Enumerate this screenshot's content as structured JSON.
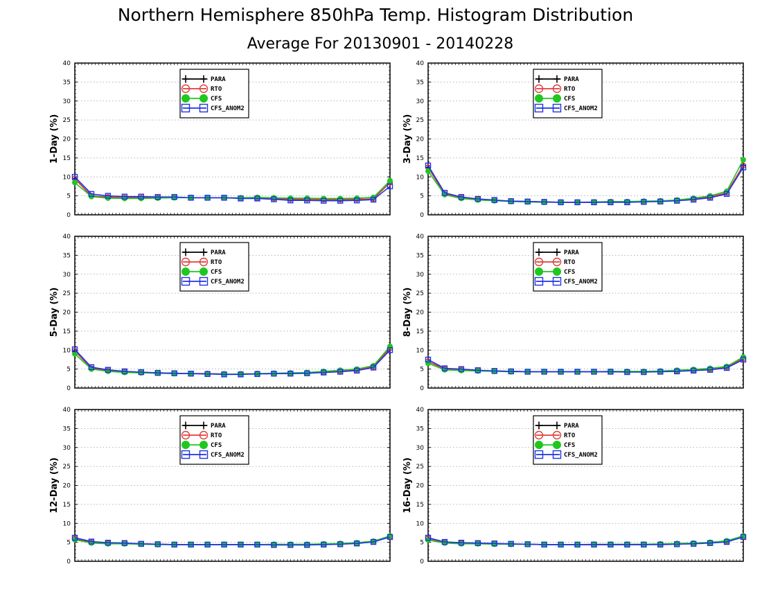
{
  "figure": {
    "title": "Northern Hemisphere 850hPa Temp. Histogram Distribution",
    "subtitle": "Average For 20130901 - 20140228"
  },
  "legend_entries": [
    "PARA",
    "RTO",
    "CFS",
    "CFS_ANOM2"
  ],
  "series_colors": {
    "PARA": "#000000",
    "RTO": "#e23b3b",
    "CFS": "#1ec81e",
    "CFS_ANOM2": "#1e32e6"
  },
  "y_ticks": [
    "0",
    "5",
    "10",
    "15",
    "20",
    "25",
    "30",
    "35",
    "40"
  ],
  "chart_data": [
    {
      "type": "line",
      "ylabel": "1-Day (%)",
      "ylim": [
        0,
        40
      ],
      "grid": true,
      "legend_position": "top-center",
      "x": [
        1,
        2,
        3,
        4,
        5,
        6,
        7,
        8,
        9,
        10,
        11,
        12,
        13,
        14,
        15,
        16,
        17,
        18,
        19,
        20
      ],
      "series": [
        {
          "name": "PARA",
          "values": [
            9.5,
            5.0,
            4.7,
            4.5,
            4.5,
            4.5,
            4.6,
            4.5,
            4.5,
            4.5,
            4.4,
            4.4,
            4.3,
            4.1,
            4.1,
            4.0,
            4.0,
            4.1,
            4.2,
            8.5
          ]
        },
        {
          "name": "RTO",
          "values": [
            9.5,
            5.0,
            4.7,
            4.5,
            4.5,
            4.5,
            4.6,
            4.5,
            4.5,
            4.5,
            4.4,
            4.4,
            4.3,
            4.1,
            4.1,
            4.0,
            4.0,
            4.1,
            4.2,
            8.5
          ]
        },
        {
          "name": "CFS",
          "values": [
            8.5,
            4.8,
            4.4,
            4.3,
            4.3,
            4.4,
            4.5,
            4.5,
            4.5,
            4.5,
            4.5,
            4.6,
            4.5,
            4.4,
            4.4,
            4.3,
            4.3,
            4.4,
            4.6,
            9.0
          ]
        },
        {
          "name": "CFS_ANOM2",
          "values": [
            10.0,
            5.5,
            5.0,
            4.8,
            4.8,
            4.7,
            4.7,
            4.5,
            4.5,
            4.5,
            4.3,
            4.3,
            4.1,
            3.8,
            3.8,
            3.7,
            3.7,
            3.8,
            4.0,
            7.5
          ]
        }
      ]
    },
    {
      "type": "line",
      "ylabel": "3-Day (%)",
      "ylim": [
        0,
        40
      ],
      "grid": true,
      "legend_position": "top-center",
      "x": [
        1,
        2,
        3,
        4,
        5,
        6,
        7,
        8,
        9,
        10,
        11,
        12,
        13,
        14,
        15,
        16,
        17,
        18,
        19,
        20
      ],
      "series": [
        {
          "name": "PARA",
          "values": [
            12.5,
            5.5,
            4.5,
            4.1,
            3.8,
            3.6,
            3.5,
            3.4,
            3.3,
            3.3,
            3.3,
            3.4,
            3.4,
            3.5,
            3.6,
            3.8,
            4.2,
            4.7,
            5.8,
            13.0
          ]
        },
        {
          "name": "RTO",
          "values": [
            12.5,
            5.5,
            4.5,
            4.1,
            3.8,
            3.6,
            3.5,
            3.4,
            3.3,
            3.3,
            3.3,
            3.4,
            3.4,
            3.5,
            3.6,
            3.8,
            4.2,
            4.7,
            5.8,
            13.0
          ]
        },
        {
          "name": "CFS",
          "values": [
            11.5,
            5.3,
            4.3,
            3.9,
            3.7,
            3.5,
            3.4,
            3.3,
            3.3,
            3.3,
            3.4,
            3.5,
            3.5,
            3.6,
            3.7,
            3.9,
            4.4,
            5.0,
            6.2,
            14.5
          ]
        },
        {
          "name": "CFS_ANOM2",
          "values": [
            13.0,
            5.8,
            4.7,
            4.2,
            3.9,
            3.6,
            3.5,
            3.4,
            3.3,
            3.3,
            3.3,
            3.3,
            3.3,
            3.4,
            3.5,
            3.7,
            4.0,
            4.5,
            5.5,
            12.5
          ]
        }
      ]
    },
    {
      "type": "line",
      "ylabel": "5-Day (%)",
      "ylim": [
        0,
        40
      ],
      "grid": true,
      "legend_position": "top-center",
      "x": [
        1,
        2,
        3,
        4,
        5,
        6,
        7,
        8,
        9,
        10,
        11,
        12,
        13,
        14,
        15,
        16,
        17,
        18,
        19,
        20
      ],
      "series": [
        {
          "name": "PARA",
          "values": [
            9.8,
            5.2,
            4.6,
            4.3,
            4.1,
            4.0,
            3.9,
            3.8,
            3.8,
            3.7,
            3.7,
            3.8,
            3.8,
            3.9,
            4.0,
            4.2,
            4.5,
            4.8,
            5.6,
            10.5
          ]
        },
        {
          "name": "RTO",
          "values": [
            9.8,
            5.2,
            4.6,
            4.3,
            4.1,
            4.0,
            3.9,
            3.8,
            3.8,
            3.7,
            3.7,
            3.8,
            3.8,
            3.9,
            4.0,
            4.2,
            4.5,
            4.8,
            5.6,
            10.5
          ]
        },
        {
          "name": "CFS",
          "values": [
            9.0,
            5.0,
            4.4,
            4.1,
            4.0,
            3.9,
            3.8,
            3.8,
            3.7,
            3.7,
            3.7,
            3.8,
            3.9,
            4.0,
            4.1,
            4.4,
            4.7,
            5.0,
            5.9,
            11.0
          ]
        },
        {
          "name": "CFS_ANOM2",
          "values": [
            10.2,
            5.5,
            4.8,
            4.4,
            4.2,
            4.0,
            3.9,
            3.8,
            3.7,
            3.6,
            3.6,
            3.7,
            3.8,
            3.8,
            3.9,
            4.1,
            4.3,
            4.6,
            5.4,
            10.0
          ]
        }
      ]
    },
    {
      "type": "line",
      "ylabel": "8-Day (%)",
      "ylim": [
        0,
        40
      ],
      "grid": true,
      "legend_position": "top-center",
      "x": [
        1,
        2,
        3,
        4,
        5,
        6,
        7,
        8,
        9,
        10,
        11,
        12,
        13,
        14,
        15,
        16,
        17,
        18,
        19,
        20
      ],
      "series": [
        {
          "name": "PARA",
          "values": [
            7.0,
            5.0,
            4.8,
            4.6,
            4.5,
            4.4,
            4.3,
            4.3,
            4.3,
            4.3,
            4.3,
            4.3,
            4.3,
            4.3,
            4.4,
            4.5,
            4.7,
            5.0,
            5.5,
            7.8
          ]
        },
        {
          "name": "RTO",
          "values": [
            7.0,
            5.0,
            4.8,
            4.6,
            4.5,
            4.4,
            4.3,
            4.3,
            4.3,
            4.3,
            4.3,
            4.3,
            4.3,
            4.3,
            4.4,
            4.5,
            4.7,
            5.0,
            5.5,
            7.8
          ]
        },
        {
          "name": "CFS",
          "values": [
            6.5,
            4.8,
            4.6,
            4.5,
            4.4,
            4.3,
            4.3,
            4.3,
            4.3,
            4.3,
            4.3,
            4.4,
            4.4,
            4.4,
            4.5,
            4.7,
            4.9,
            5.2,
            5.7,
            8.2
          ]
        },
        {
          "name": "CFS_ANOM2",
          "values": [
            7.5,
            5.2,
            5.0,
            4.7,
            4.5,
            4.4,
            4.3,
            4.3,
            4.3,
            4.3,
            4.3,
            4.3,
            4.2,
            4.2,
            4.3,
            4.4,
            4.6,
            4.8,
            5.3,
            7.5
          ]
        }
      ]
    },
    {
      "type": "line",
      "ylabel": "12-Day (%)",
      "ylim": [
        0,
        40
      ],
      "grid": true,
      "legend_position": "top-center",
      "x": [
        1,
        2,
        3,
        4,
        5,
        6,
        7,
        8,
        9,
        10,
        11,
        12,
        13,
        14,
        15,
        16,
        17,
        18,
        19,
        20
      ],
      "series": [
        {
          "name": "PARA",
          "values": [
            6.0,
            5.0,
            4.8,
            4.7,
            4.6,
            4.5,
            4.4,
            4.4,
            4.4,
            4.4,
            4.4,
            4.4,
            4.4,
            4.4,
            4.4,
            4.5,
            4.6,
            4.8,
            5.2,
            6.5
          ]
        },
        {
          "name": "RTO",
          "values": [
            6.0,
            5.0,
            4.8,
            4.7,
            4.6,
            4.5,
            4.4,
            4.4,
            4.4,
            4.4,
            4.4,
            4.4,
            4.4,
            4.4,
            4.4,
            4.5,
            4.6,
            4.8,
            5.2,
            6.5
          ]
        },
        {
          "name": "CFS",
          "values": [
            5.7,
            4.8,
            4.6,
            4.6,
            4.5,
            4.4,
            4.4,
            4.4,
            4.4,
            4.4,
            4.4,
            4.4,
            4.5,
            4.5,
            4.5,
            4.6,
            4.7,
            4.9,
            5.3,
            6.7
          ]
        },
        {
          "name": "CFS_ANOM2",
          "values": [
            6.2,
            5.2,
            4.9,
            4.8,
            4.6,
            4.5,
            4.4,
            4.4,
            4.4,
            4.4,
            4.4,
            4.4,
            4.3,
            4.3,
            4.3,
            4.4,
            4.5,
            4.7,
            5.1,
            6.4
          ]
        }
      ]
    },
    {
      "type": "line",
      "ylabel": "16-Day (%)",
      "ylim": [
        0,
        40
      ],
      "grid": true,
      "legend_position": "top-center",
      "x": [
        1,
        2,
        3,
        4,
        5,
        6,
        7,
        8,
        9,
        10,
        11,
        12,
        13,
        14,
        15,
        16,
        17,
        18,
        19,
        20
      ],
      "series": [
        {
          "name": "PARA",
          "values": [
            6.0,
            5.0,
            4.8,
            4.7,
            4.6,
            4.5,
            4.5,
            4.4,
            4.4,
            4.4,
            4.4,
            4.4,
            4.4,
            4.4,
            4.5,
            4.6,
            4.7,
            4.9,
            5.2,
            6.5
          ]
        },
        {
          "name": "RTO",
          "values": [
            6.0,
            5.0,
            4.8,
            4.7,
            4.6,
            4.5,
            4.5,
            4.4,
            4.4,
            4.4,
            4.4,
            4.4,
            4.4,
            4.4,
            4.5,
            4.6,
            4.7,
            4.9,
            5.2,
            6.5
          ]
        },
        {
          "name": "CFS",
          "values": [
            5.6,
            4.8,
            4.6,
            4.6,
            4.5,
            4.5,
            4.5,
            4.4,
            4.4,
            4.4,
            4.5,
            4.5,
            4.5,
            4.5,
            4.6,
            4.7,
            4.8,
            5.0,
            5.4,
            6.7
          ]
        },
        {
          "name": "CFS_ANOM2",
          "values": [
            6.2,
            5.1,
            4.9,
            4.8,
            4.7,
            4.6,
            4.5,
            4.4,
            4.4,
            4.4,
            4.4,
            4.4,
            4.4,
            4.4,
            4.4,
            4.5,
            4.6,
            4.8,
            5.1,
            6.4
          ]
        }
      ]
    }
  ]
}
